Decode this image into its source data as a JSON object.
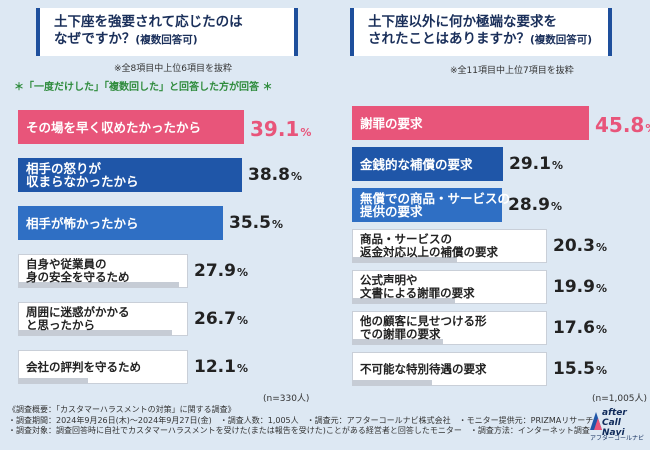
{
  "left": {
    "question_line1": "土下座を強要されて応じたのは",
    "question_line2": "なぜですか？",
    "question_suffix": "(複数回答可)",
    "note": "※全8項目中上位6項目を抜粋",
    "subtitle": "＊「一度だけした」「複数回した」と回答した方が回答 ＊",
    "sample": "(n=330人)"
  },
  "right": {
    "question_line1": "土下座以外に何か極端な要求を",
    "question_line2": "されたことはありますか？",
    "question_suffix": "(複数回答可)",
    "note": "※全11項目中上位7項目を抜粋",
    "sample": "(n=1,005人)"
  },
  "colors": {
    "pink": "#e8557a",
    "blue": "#1f56a8",
    "lblue": "#2f6fc4",
    "grey": "#c6ccd5"
  },
  "chart_data": [
    {
      "type": "bar",
      "orientation": "horizontal",
      "title": "土下座を強要されて応じたのはなぜですか？(複数回答可)",
      "unit": "%",
      "xlim": [
        0,
        45
      ],
      "categories": [
        "その場を早く収めたかったから",
        "相手の怒りが\n収まらなかったから",
        "相手が怖かったから",
        "自身や従業員の\n身の安全を守るため",
        "周囲に迷惑がかかる\nと思ったから",
        "会社の評判を守るため"
      ],
      "values": [
        39.1,
        38.8,
        35.5,
        27.9,
        26.7,
        12.1
      ],
      "styles": [
        "pink",
        "blue",
        "lblue",
        "grey",
        "grey",
        "grey"
      ]
    },
    {
      "type": "bar",
      "orientation": "horizontal",
      "title": "土下座以外に何か極端な要求をされたことはありますか？(複数回答可)",
      "unit": "%",
      "xlim": [
        0,
        55
      ],
      "categories": [
        "謝罪の要求",
        "金銭的な補償の要求",
        "無償での商品・サービスの\n提供の要求",
        "商品・サービスの\n返金対応以上の補償の要求",
        "公式声明や\n文書による謝罪の要求",
        "他の顧客に見せつける形\nでの謝罪の要求",
        "不可能な特別待遇の要求"
      ],
      "values": [
        45.8,
        29.1,
        28.9,
        20.3,
        19.9,
        17.6,
        15.5
      ],
      "styles": [
        "pink",
        "blue",
        "lblue",
        "grey",
        "grey",
        "grey",
        "grey"
      ]
    }
  ],
  "footer": {
    "line1": "《調査概要：「カスタマーハラスメントの対策」に関する調査》",
    "line2": "・調査期間：2024年9月26日(木)〜2024年9月27日(金)　・調査人数：1,005人　・調査元：アフターコールナビ株式会社　・モニター提供元：PRIZMAリサーチ",
    "line3": "・調査対象：調査回答時に自社でカスタマーハラスメントを受けた(または報告を受けた)ことがある経営者と回答したモニター　・調査方法：インターネット調査"
  },
  "logo": {
    "line1": "after",
    "line2": "Call Navi",
    "line3": "アフターコールナビ"
  }
}
